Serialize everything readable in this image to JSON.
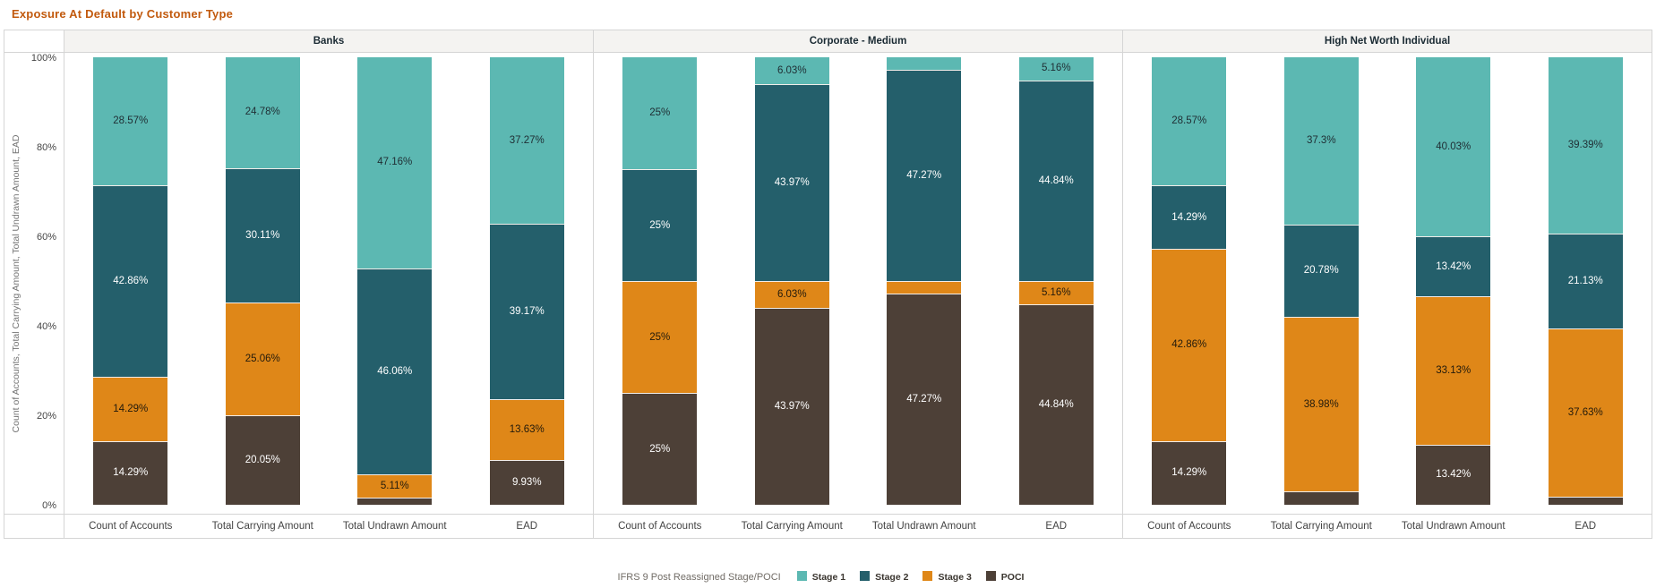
{
  "chart_data": {
    "type": "bar",
    "variant": "100-percent-stacked-columns-small-multiples",
    "title": "Exposure At Default by Customer Type",
    "ylabel": "Count of Accounts, Total Carrying Amount, Total Undrawn Amount, EAD",
    "ylim": [
      0,
      100
    ],
    "grid": false,
    "y_ticks": [
      {
        "label": "100%",
        "value": 100
      },
      {
        "label": "80%",
        "value": 80
      },
      {
        "label": "60%",
        "value": 60
      },
      {
        "label": "40%",
        "value": 40
      },
      {
        "label": "20%",
        "value": 20
      },
      {
        "label": "0%",
        "value": 0
      }
    ],
    "legend_title": "IFRS 9 Post Reassigned Stage/POCI",
    "legend_position": "bottom-center",
    "series_names": [
      "Stage 1",
      "Stage 2",
      "Stage 3",
      "POCI"
    ],
    "categories": [
      "Count of Accounts",
      "Total Carrying Amount",
      "Total Undrawn Amount",
      "EAD"
    ],
    "colors": {
      "title": "#C25A0E",
      "panel_header_bg": "#F4F3F1",
      "panel_header_text": "#1A2A33",
      "border": "#D5D5D5",
      "axis_text": "#444444",
      "y_title_text": "#757575",
      "legend_title_text": "#716C66",
      "legend_label_text": "#3A352F",
      "series": {
        "Stage 1": {
          "fill": "#5CB8B2",
          "label_text": "#1F2D33"
        },
        "Stage 2": {
          "fill": "#245F6B",
          "label_text": "#FFFFFF"
        },
        "Stage 3": {
          "fill": "#DF8718",
          "label_text": "#221A0C"
        },
        "POCI": {
          "fill": "#4D4037",
          "label_text": "#FFFFFF"
        }
      }
    },
    "panels": [
      {
        "name": "Banks",
        "bars": [
          {
            "category": "Count of Accounts",
            "segments": [
              {
                "series": "Stage 1",
                "value": 28.57,
                "label": "28.57%"
              },
              {
                "series": "Stage 2",
                "value": 42.86,
                "label": "42.86%"
              },
              {
                "series": "Stage 3",
                "value": 14.29,
                "label": "14.29%"
              },
              {
                "series": "POCI",
                "value": 14.29,
                "label": "14.29%"
              }
            ]
          },
          {
            "category": "Total Carrying Amount",
            "segments": [
              {
                "series": "Stage 1",
                "value": 24.78,
                "label": "24.78%"
              },
              {
                "series": "Stage 2",
                "value": 30.11,
                "label": "30.11%"
              },
              {
                "series": "Stage 3",
                "value": 25.06,
                "label": "25.06%"
              },
              {
                "series": "POCI",
                "value": 20.05,
                "label": "20.05%"
              }
            ]
          },
          {
            "category": "Total Undrawn Amount",
            "segments": [
              {
                "series": "Stage 1",
                "value": 47.16,
                "label": "47.16%"
              },
              {
                "series": "Stage 2",
                "value": 46.06,
                "label": "46.06%"
              },
              {
                "series": "Stage 3",
                "value": 5.11,
                "label": "5.11%"
              },
              {
                "series": "POCI",
                "value": 1.67,
                "label": ""
              }
            ]
          },
          {
            "category": "EAD",
            "segments": [
              {
                "series": "Stage 1",
                "value": 37.27,
                "label": "37.27%"
              },
              {
                "series": "Stage 2",
                "value": 39.17,
                "label": "39.17%"
              },
              {
                "series": "Stage 3",
                "value": 13.63,
                "label": "13.63%"
              },
              {
                "series": "POCI",
                "value": 9.93,
                "label": "9.93%"
              }
            ]
          }
        ]
      },
      {
        "name": "Corporate - Medium",
        "bars": [
          {
            "category": "Count of Accounts",
            "segments": [
              {
                "series": "Stage 1",
                "value": 25,
                "label": "25%"
              },
              {
                "series": "Stage 2",
                "value": 25,
                "label": "25%"
              },
              {
                "series": "Stage 3",
                "value": 25,
                "label": "25%"
              },
              {
                "series": "POCI",
                "value": 25,
                "label": "25%"
              }
            ]
          },
          {
            "category": "Total Carrying Amount",
            "segments": [
              {
                "series": "Stage 1",
                "value": 6.03,
                "label": "6.03%"
              },
              {
                "series": "Stage 2",
                "value": 43.97,
                "label": "43.97%"
              },
              {
                "series": "Stage 3",
                "value": 6.03,
                "label": "6.03%"
              },
              {
                "series": "POCI",
                "value": 43.97,
                "label": "43.97%"
              }
            ]
          },
          {
            "category": "Total Undrawn Amount",
            "segments": [
              {
                "series": "Stage 1",
                "value": 2.73,
                "label": ""
              },
              {
                "series": "Stage 2",
                "value": 47.27,
                "label": "47.27%"
              },
              {
                "series": "Stage 3",
                "value": 2.73,
                "label": ""
              },
              {
                "series": "POCI",
                "value": 47.27,
                "label": "47.27%"
              }
            ]
          },
          {
            "category": "EAD",
            "segments": [
              {
                "series": "Stage 1",
                "value": 5.16,
                "label": "5.16%"
              },
              {
                "series": "Stage 2",
                "value": 44.84,
                "label": "44.84%"
              },
              {
                "series": "Stage 3",
                "value": 5.16,
                "label": "5.16%"
              },
              {
                "series": "POCI",
                "value": 44.84,
                "label": "44.84%"
              }
            ]
          }
        ]
      },
      {
        "name": "High Net Worth Individual",
        "bars": [
          {
            "category": "Count of Accounts",
            "segments": [
              {
                "series": "Stage 1",
                "value": 28.57,
                "label": "28.57%"
              },
              {
                "series": "Stage 2",
                "value": 14.29,
                "label": "14.29%"
              },
              {
                "series": "Stage 3",
                "value": 42.86,
                "label": "42.86%"
              },
              {
                "series": "POCI",
                "value": 14.29,
                "label": "14.29%"
              }
            ]
          },
          {
            "category": "Total Carrying Amount",
            "segments": [
              {
                "series": "Stage 1",
                "value": 37.3,
                "label": "37.3%"
              },
              {
                "series": "Stage 2",
                "value": 20.78,
                "label": "20.78%"
              },
              {
                "series": "Stage 3",
                "value": 38.98,
                "label": "38.98%"
              },
              {
                "series": "POCI",
                "value": 2.94,
                "label": ""
              }
            ]
          },
          {
            "category": "Total Undrawn Amount",
            "segments": [
              {
                "series": "Stage 1",
                "value": 40.03,
                "label": "40.03%"
              },
              {
                "series": "Stage 2",
                "value": 13.42,
                "label": "13.42%"
              },
              {
                "series": "Stage 3",
                "value": 33.13,
                "label": "33.13%"
              },
              {
                "series": "POCI",
                "value": 13.42,
                "label": "13.42%"
              }
            ]
          },
          {
            "category": "EAD",
            "segments": [
              {
                "series": "Stage 1",
                "value": 39.39,
                "label": "39.39%"
              },
              {
                "series": "Stage 2",
                "value": 21.13,
                "label": "21.13%"
              },
              {
                "series": "Stage 3",
                "value": 37.63,
                "label": "37.63%"
              },
              {
                "series": "POCI",
                "value": 1.85,
                "label": ""
              }
            ]
          }
        ]
      }
    ]
  }
}
